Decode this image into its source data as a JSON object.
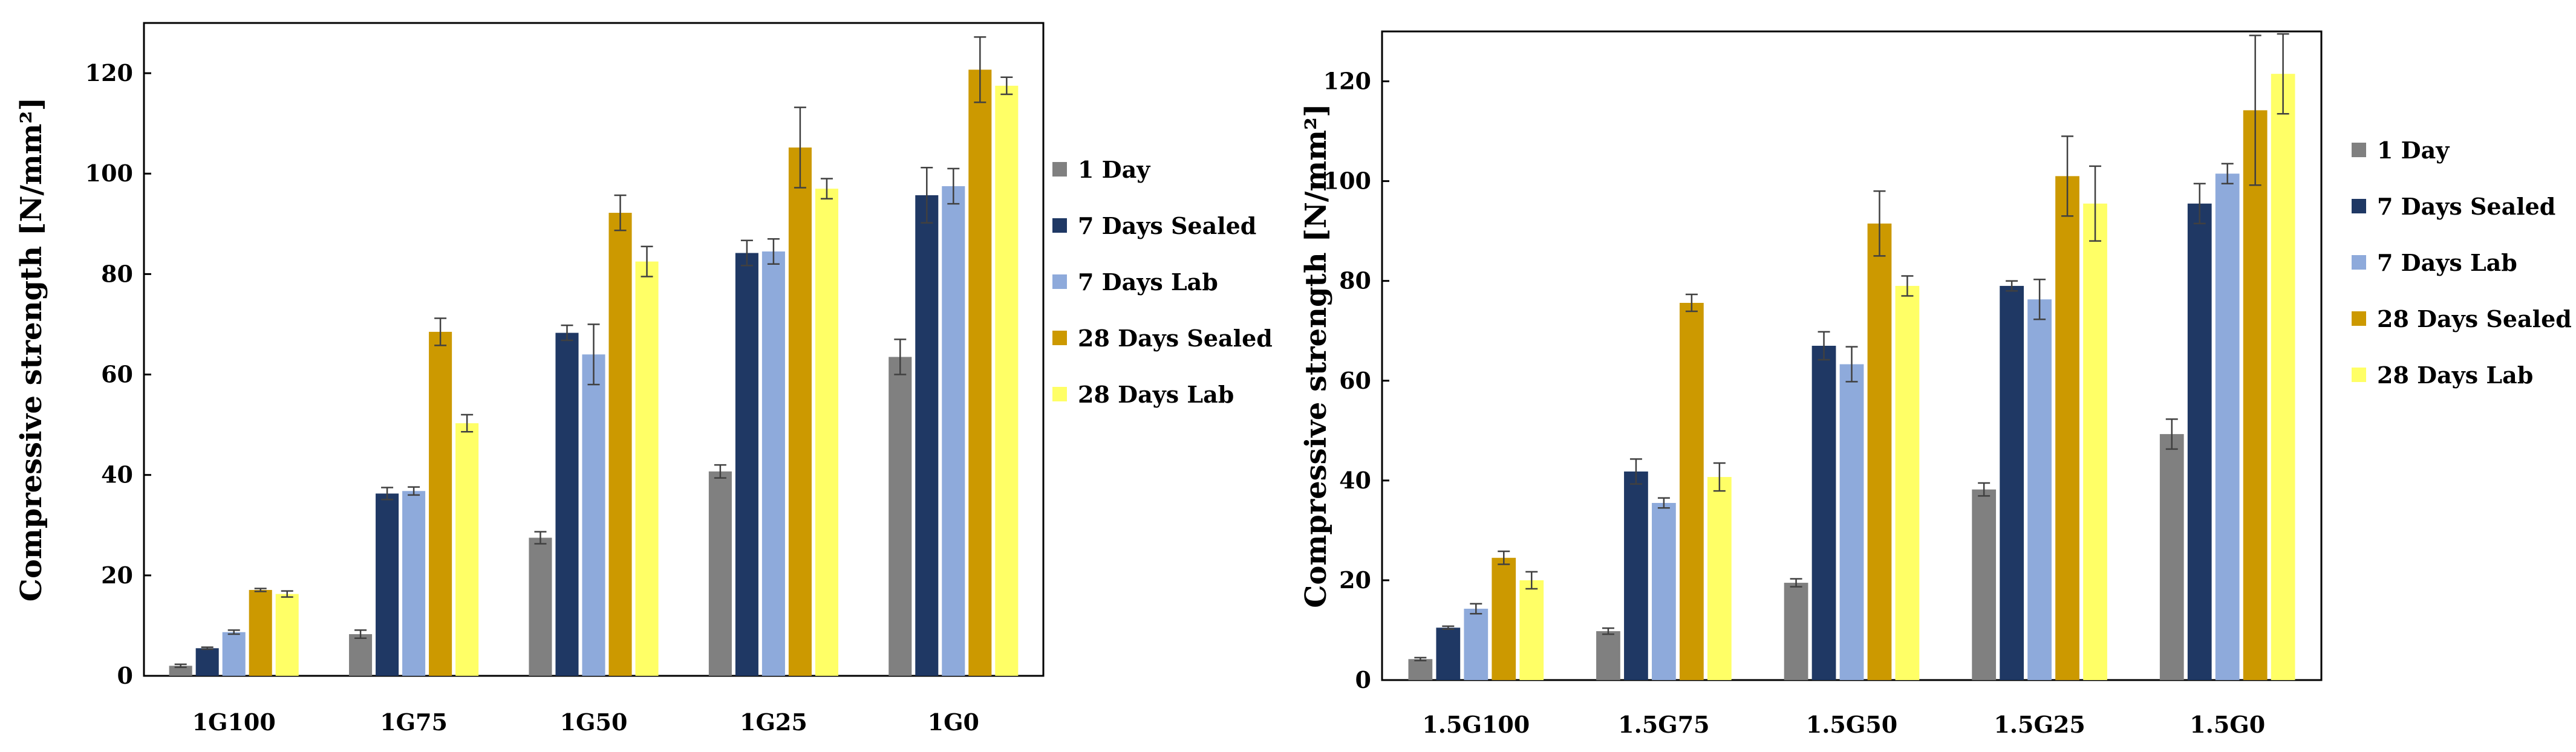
{
  "chart_data": [
    {
      "type": "bar",
      "title": "",
      "xlabel": "",
      "ylabel": "Compressive strength [N/mm²]",
      "ylim": [
        0,
        130
      ],
      "yticks": [
        0,
        20,
        40,
        60,
        80,
        100,
        120
      ],
      "grid": false,
      "legend_position": "right",
      "categories": [
        "1G100",
        "1G75",
        "1G50",
        "1G25",
        "1G0"
      ],
      "series": [
        {
          "name": "1 Day",
          "color": "#808080",
          "values": [
            2,
            8.3,
            27.5,
            40.7,
            63.5
          ],
          "errors": [
            0.3,
            0.8,
            1.2,
            1.3,
            3.5
          ]
        },
        {
          "name": "7 Days Sealed",
          "color": "#1f3864",
          "values": [
            5.5,
            36.3,
            68.3,
            84.2,
            95.7
          ],
          "errors": [
            0.2,
            1.2,
            1.5,
            2.5,
            5.5
          ]
        },
        {
          "name": "7 Days Lab",
          "color": "#8eaadb",
          "values": [
            8.7,
            36.8,
            64,
            84.5,
            97.5
          ],
          "errors": [
            0.4,
            0.8,
            6,
            2.5,
            3.5
          ]
        },
        {
          "name": "28 Days Sealed",
          "color": "#cc9900",
          "values": [
            17.1,
            68.5,
            92.2,
            105.2,
            120.7
          ],
          "errors": [
            0.3,
            2.7,
            3.5,
            8,
            6.5
          ]
        },
        {
          "name": "28 Days Lab",
          "color": "#ffff66",
          "values": [
            16.3,
            50.3,
            82.5,
            97,
            117.5
          ],
          "errors": [
            0.6,
            1.7,
            3,
            2,
            1.7
          ]
        }
      ]
    },
    {
      "type": "bar",
      "title": "",
      "xlabel": "",
      "ylabel": "Compressive strength  [N/mm²]",
      "ylim": [
        0,
        130
      ],
      "yticks": [
        0,
        20,
        40,
        60,
        80,
        100,
        120
      ],
      "grid": false,
      "legend_position": "right",
      "categories": [
        "1.5G100",
        "1.5G75",
        "1.5G50",
        "1.5G25",
        "1.5G0"
      ],
      "series": [
        {
          "name": "1 Day",
          "color": "#808080",
          "values": [
            4.2,
            9.8,
            19.5,
            38.2,
            49.3
          ],
          "errors": [
            0.3,
            0.6,
            0.8,
            1.3,
            3
          ]
        },
        {
          "name": "7 Days Sealed",
          "color": "#1f3864",
          "values": [
            10.5,
            41.8,
            67,
            79,
            95.5
          ],
          "errors": [
            0.3,
            2.5,
            2.8,
            1,
            4
          ]
        },
        {
          "name": "7 Days Lab",
          "color": "#8eaadb",
          "values": [
            14.3,
            35.5,
            63.3,
            76.3,
            101.5
          ],
          "errors": [
            1,
            1,
            3.5,
            4,
            2
          ]
        },
        {
          "name": "28 Days Sealed",
          "color": "#cc9900",
          "values": [
            24.5,
            75.6,
            91.5,
            101,
            114.2
          ],
          "errors": [
            1.3,
            1.7,
            6.5,
            8,
            15
          ]
        },
        {
          "name": "28 Days Lab",
          "color": "#ffff66",
          "values": [
            20,
            40.7,
            79,
            95.5,
            121.5
          ],
          "errors": [
            1.7,
            2.8,
            2,
            7.5,
            8
          ]
        }
      ]
    }
  ]
}
